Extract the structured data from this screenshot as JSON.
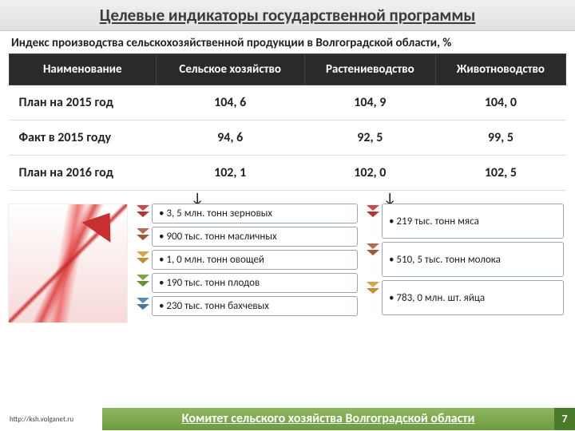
{
  "title": "Целевые индикаторы государственной программы",
  "subtitle": "Индекс производства сельскохозяйственной продукции в Волгоградской области, %",
  "table": {
    "columns": [
      "Наименование",
      "Сельское хозяйство",
      "Растениеводство",
      "Животноводство"
    ],
    "rows": [
      [
        "План на 2015 год",
        "104, 6",
        "104, 9",
        "104, 0"
      ],
      [
        "Факт в 2015 году",
        "94, 6",
        "92, 5",
        "99, 5"
      ],
      [
        "План на 2016 год",
        "102, 1",
        "102, 0",
        "102, 5"
      ]
    ],
    "header_bg": "#2a2a2a",
    "header_color": "#ffffff",
    "cell_fontsize": 16
  },
  "bullets_left": {
    "chevron_colors": [
      "#c24a4a",
      "#b86a4a",
      "#d6a24a",
      "#7aa64a",
      "#5a8ab0"
    ],
    "items": [
      "• 3, 5 млн. тонн зерновых",
      "• 900 тыс. тонн масличных",
      "• 1, 0 млн. тонн овощей",
      "• 190 тыс. тонн плодов",
      "• 230 тыс. тонн бахчевых"
    ]
  },
  "bullets_right": {
    "chevron_colors": [
      "#c24a4a",
      "#b86a4a",
      "#d6a24a"
    ],
    "items": [
      "• 219 тыс. тонн мяса",
      "• 510, 5 тыс. тонн молока",
      "• 783, 0 млн. шт. яйца"
    ]
  },
  "footer": {
    "url": "http://ksh.volganet.ru",
    "committee": "Комитет сельского хозяйства Волгоградской области",
    "page": "7",
    "bar_bg_start": "#8fb760",
    "bar_bg_end": "#6d9a3f"
  }
}
